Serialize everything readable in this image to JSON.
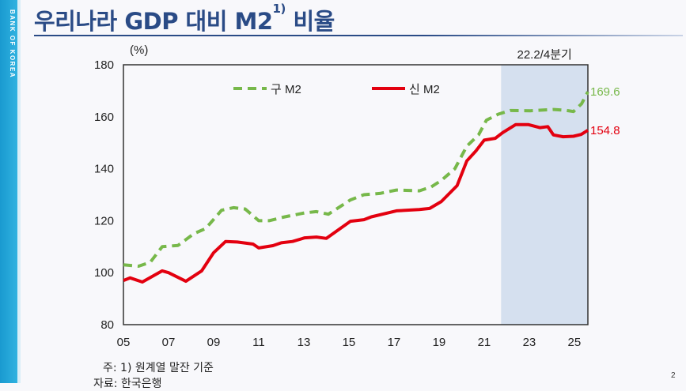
{
  "sidebar": {
    "brand": "BANK OF KOREA"
  },
  "header": {
    "title": "우리나라 GDP 대비 M2",
    "title_sup": "1)"
  },
  "chart_data": {
    "type": "line",
    "title": "우리나라 GDP 대비 M2 비율",
    "ylabel": "(%)",
    "xlabel": "",
    "ylim": [
      80,
      180
    ],
    "xlim": [
      2005,
      2025.6
    ],
    "yticks": [
      80,
      100,
      120,
      140,
      160,
      180
    ],
    "xticks": [
      {
        "year": 2005,
        "label": "05"
      },
      {
        "year": 2007,
        "label": "07"
      },
      {
        "year": 2009,
        "label": "09"
      },
      {
        "year": 2011,
        "label": "11"
      },
      {
        "year": 2013,
        "label": "13"
      },
      {
        "year": 2015,
        "label": "15"
      },
      {
        "year": 2017,
        "label": "17"
      },
      {
        "year": 2019,
        "label": "19"
      },
      {
        "year": 2021,
        "label": "21"
      },
      {
        "year": 2023,
        "label": "23"
      },
      {
        "year": 2025,
        "label": "25"
      }
    ],
    "grid": false,
    "legend_position": "top-left",
    "shaded_region": {
      "from": 2021.75,
      "to": 2025.6,
      "label": "22.2/4분기",
      "color": "#d5e0ef"
    },
    "series": [
      {
        "name": "구 M2",
        "color": "#77b84a",
        "style": "dashed",
        "end_label": "169.6",
        "x": [
          2005.0,
          2005.67,
          2006.19,
          2006.72,
          2007.42,
          2008.12,
          2008.65,
          2009.35,
          2009.88,
          2010.4,
          2011.0,
          2011.46,
          2012.16,
          2013.04,
          2013.56,
          2014.09,
          2015.07,
          2015.67,
          2016.37,
          2017.11,
          2018.12,
          2018.65,
          2019.1,
          2019.7,
          2020.23,
          2020.75,
          2021.1,
          2021.63,
          2022.16,
          2023.04,
          2024.09,
          2024.61,
          2024.96,
          2025.32,
          2025.6
        ],
        "values": [
          103,
          102.5,
          104,
          110,
          110.5,
          115,
          117,
          124,
          125,
          124.5,
          120,
          120,
          121.5,
          123,
          123.5,
          122.5,
          128,
          130,
          130.5,
          131.8,
          131.5,
          133,
          135.5,
          140,
          148.7,
          153,
          158.7,
          161,
          162.4,
          162.3,
          162.8,
          162.5,
          162,
          165,
          169.6
        ]
      },
      {
        "name": "신 M2",
        "color": "#e3000f",
        "style": "solid",
        "end_label": "154.8",
        "x": [
          2005.0,
          2005.3,
          2005.84,
          2006.72,
          2007.0,
          2007.77,
          2008.47,
          2009.0,
          2009.53,
          2010.05,
          2010.75,
          2011.0,
          2011.63,
          2012.0,
          2012.5,
          2013.04,
          2013.56,
          2014.0,
          2015.07,
          2015.67,
          2016.0,
          2017.11,
          2018.12,
          2018.58,
          2019.1,
          2019.8,
          2020.23,
          2020.65,
          2021.0,
          2021.49,
          2021.84,
          2022.4,
          2022.95,
          2023.47,
          2023.82,
          2024.07,
          2024.5,
          2024.96,
          2025.3,
          2025.6
        ],
        "values": [
          97,
          98,
          96.4,
          100.7,
          100,
          96.7,
          100.7,
          107.7,
          112,
          111.8,
          111,
          109.5,
          110.4,
          111.5,
          112,
          113.4,
          113.7,
          113.2,
          119.8,
          120.4,
          121.5,
          123.8,
          124.3,
          124.7,
          127.4,
          133.5,
          143,
          147,
          151,
          151.7,
          154,
          157,
          157,
          155.8,
          156.2,
          153,
          152.3,
          152.5,
          153.2,
          154.8
        ]
      }
    ]
  },
  "footer": {
    "note": "주: 1) 원계열 말잔 기준",
    "source": "자료: 한국은행",
    "page_number": "2"
  }
}
